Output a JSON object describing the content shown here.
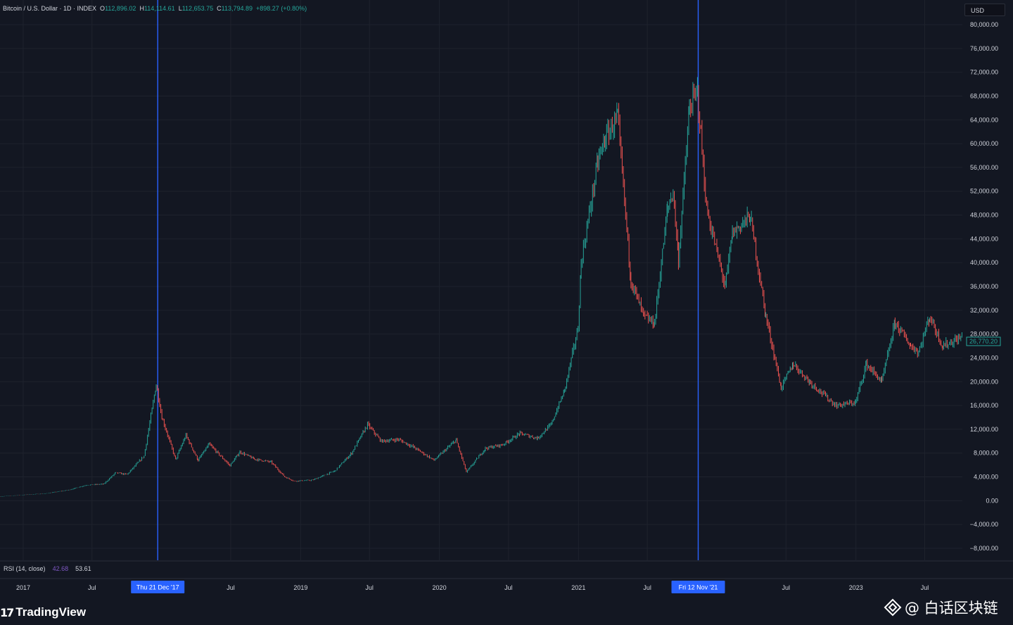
{
  "header": {
    "symbol": "Bitcoin / U.S. Dollar · 1D · INDEX",
    "open_label": "O",
    "open": "112,896.02",
    "high_label": "H",
    "high": "114,114.61",
    "low_label": "L",
    "low": "112,653.75",
    "close_label": "C",
    "close": "113,794.89",
    "change": "+898.27 (+0.80%)",
    "currency": "USD"
  },
  "indicator": {
    "name": "RSI (14, close)",
    "value1": "42.68",
    "value2": "53.61"
  },
  "branding": {
    "logo_text": "TradingView",
    "logo_mark": "17",
    "watermark": "@ 白话区块链"
  },
  "colors": {
    "background": "#131722",
    "grid": "#1e222d",
    "text": "#d1d4dc",
    "up": "#26a69a",
    "down": "#ef5350",
    "marker_line": "#2962ff",
    "marker_badge": "#2962ff"
  },
  "chart_data": {
    "type": "line",
    "title": "Bitcoin / U.S. Dollar · 1D · INDEX",
    "price_axis": {
      "ylim": [
        -10000,
        82000
      ],
      "ticks": [
        "80,000.00",
        "76,000.00",
        "72,000.00",
        "68,000.00",
        "64,000.00",
        "60,000.00",
        "56,000.00",
        "52,000.00",
        "48,000.00",
        "44,000.00",
        "40,000.00",
        "36,000.00",
        "32,000.00",
        "28,000.00",
        "24,000.00",
        "20,000.00",
        "16,000.00",
        "12,000.00",
        "8,000.00",
        "4,000.00",
        "0.00",
        "−4,000.00",
        "−8,000.00"
      ],
      "tick_values": [
        80000,
        76000,
        72000,
        68000,
        64000,
        60000,
        56000,
        52000,
        48000,
        44000,
        40000,
        36000,
        32000,
        28000,
        24000,
        20000,
        16000,
        12000,
        8000,
        4000,
        0,
        -4000,
        -8000
      ]
    },
    "time_axis": {
      "xlim": [
        "2016-11-01",
        "2023-10-08"
      ],
      "ticks": [
        {
          "label": "2017",
          "date": "2017-01-01"
        },
        {
          "label": "Jul",
          "date": "2017-07-01"
        },
        {
          "label": "Jul",
          "date": "2018-07-01"
        },
        {
          "label": "2019",
          "date": "2019-01-01"
        },
        {
          "label": "Jul",
          "date": "2019-07-01"
        },
        {
          "label": "2020",
          "date": "2020-01-01"
        },
        {
          "label": "Jul",
          "date": "2020-07-01"
        },
        {
          "label": "2021",
          "date": "2021-01-01"
        },
        {
          "label": "Jul",
          "date": "2021-07-01"
        },
        {
          "label": "Jul",
          "date": "2022-07-01"
        },
        {
          "label": "2023",
          "date": "2023-01-01"
        },
        {
          "label": "Jul",
          "date": "2023-07-01"
        }
      ]
    },
    "markers": [
      {
        "label": "Thu 21 Dec '17",
        "date": "2017-12-21"
      },
      {
        "label": "Fri 12 Nov '21",
        "date": "2021-11-12"
      }
    ],
    "last_price": {
      "label": "26,770.20",
      "value": 26770.2
    },
    "series": [
      {
        "x": [
          "2016-11-01",
          "2017-01-01",
          "2017-03-01",
          "2017-05-01",
          "2017-06-15",
          "2017-08-01",
          "2017-09-01",
          "2017-10-01",
          "2017-11-15",
          "2017-12-17",
          "2018-01-01",
          "2018-02-06",
          "2018-03-05",
          "2018-04-06",
          "2018-05-05",
          "2018-06-29",
          "2018-07-25",
          "2018-09-01",
          "2018-10-15",
          "2018-11-20",
          "2018-12-15",
          "2019-02-01",
          "2019-04-01",
          "2019-05-15",
          "2019-06-26",
          "2019-08-01",
          "2019-09-15",
          "2019-10-25",
          "2019-12-18",
          "2020-02-14",
          "2020-03-12",
          "2020-05-01",
          "2020-06-15",
          "2020-07-31",
          "2020-09-15",
          "2020-10-21",
          "2020-11-25",
          "2020-12-31",
          "2021-01-08",
          "2021-02-21",
          "2021-03-13",
          "2021-04-14",
          "2021-05-19",
          "2021-06-22",
          "2021-07-20",
          "2021-08-23",
          "2021-09-07",
          "2021-09-21",
          "2021-10-20",
          "2021-11-10",
          "2021-12-04",
          "2022-01-22",
          "2022-02-10",
          "2022-03-29",
          "2022-05-09",
          "2022-06-18",
          "2022-07-20",
          "2022-09-01",
          "2022-11-09",
          "2022-12-31",
          "2023-01-28",
          "2023-03-10",
          "2023-04-14",
          "2023-05-25",
          "2023-06-15",
          "2023-07-14",
          "2023-08-17",
          "2023-10-08"
        ],
        "values": [
          700,
          970,
          1200,
          1800,
          2600,
          2800,
          4700,
          4400,
          7500,
          19500,
          14000,
          6900,
          11000,
          6800,
          9500,
          5900,
          8200,
          7000,
          6500,
          4000,
          3300,
          3450,
          5000,
          8000,
          12800,
          10000,
          10300,
          9000,
          6800,
          10200,
          4800,
          8800,
          9400,
          11300,
          10500,
          12800,
          18500,
          29000,
          40000,
          57000,
          61000,
          64500,
          37000,
          31000,
          29800,
          49000,
          52000,
          40500,
          66000,
          68800,
          49000,
          36000,
          45000,
          47800,
          31000,
          19000,
          23000,
          20000,
          16000,
          16500,
          23000,
          20000,
          30000,
          26000,
          25000,
          31000,
          26000,
          27500
        ]
      }
    ]
  }
}
